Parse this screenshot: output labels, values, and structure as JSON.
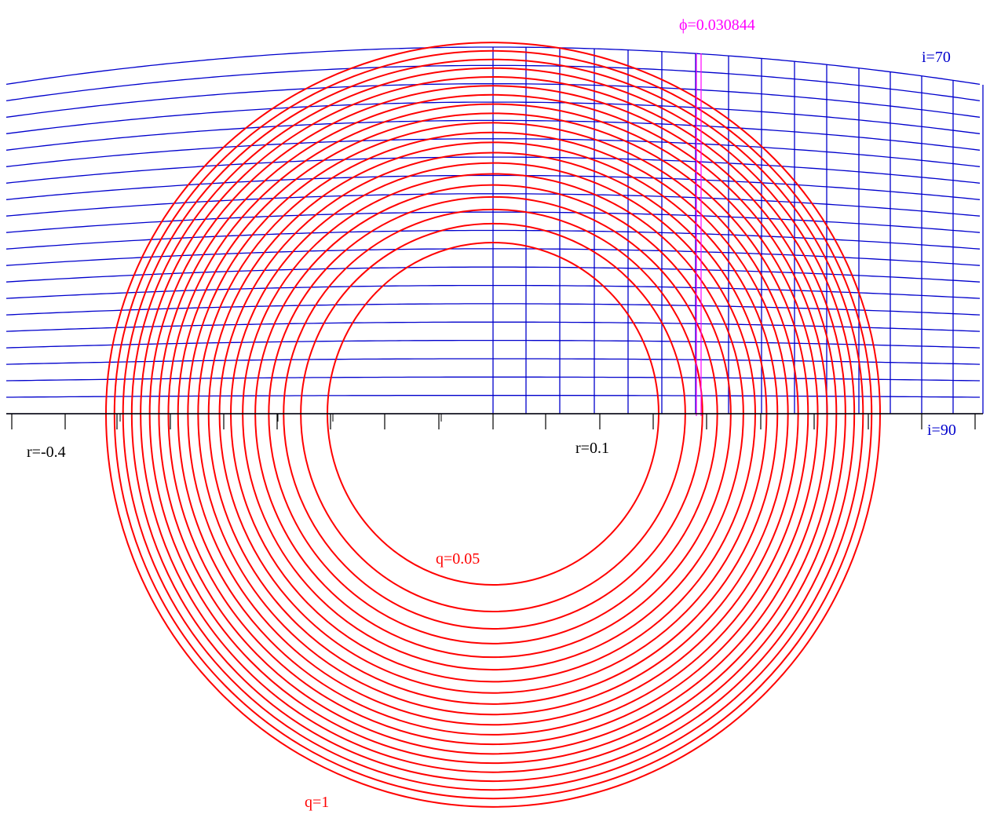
{
  "diagram": {
    "phase_label": "ϕ=0.030844",
    "inclination_top_label": "i=70",
    "inclination_bottom_label": "i=90",
    "r_label_left": "r=-0.4",
    "r_label_right": "r=0.1",
    "q_label_inner": "q=0.05",
    "q_label_outer": "q=1",
    "colors": {
      "q_contours": "#ff0000",
      "inclination_grid": "#0000cc",
      "phase_marker": "#ff00ff",
      "axis": "#000000"
    }
  }
}
